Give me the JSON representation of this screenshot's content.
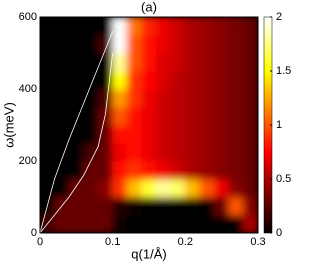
{
  "chart_data": {
    "type": "heatmap",
    "title": "(a)",
    "x_label": "q(1/Å)",
    "y_label": "ω(meV)",
    "x": [
      0.01,
      0.03,
      0.05,
      0.07,
      0.09,
      0.11,
      0.13,
      0.15,
      0.17,
      0.19,
      0.21,
      0.23,
      0.25,
      0.27,
      0.29
    ],
    "y": [
      25,
      75,
      125,
      175,
      225,
      275,
      325,
      375,
      425,
      475,
      525,
      575
    ],
    "z": [
      [
        0.2,
        0.3,
        0.3,
        0.3,
        0.3,
        0.05,
        0,
        0,
        0,
        0,
        0,
        0,
        0,
        0,
        0.5
      ],
      [
        0,
        0.3,
        0.3,
        0.3,
        0.3,
        0.1,
        0.05,
        0,
        0,
        0,
        0,
        0,
        0.3,
        1,
        0.4
      ],
      [
        0,
        0,
        0.3,
        0.3,
        0.4,
        0.9,
        1.3,
        1.6,
        1.8,
        1.7,
        1.3,
        1,
        0.7,
        0.4,
        0.3
      ],
      [
        0,
        0,
        0,
        0.3,
        0.3,
        0.8,
        0.9,
        0.8,
        0.7,
        0.6,
        0.5,
        0.45,
        0.4,
        0.35,
        0.3
      ],
      [
        0,
        0,
        0,
        0.2,
        0.3,
        0.7,
        0.8,
        0.7,
        0.6,
        0.55,
        0.5,
        0.45,
        0.4,
        0.35,
        0.3
      ],
      [
        0,
        0,
        0,
        0,
        0.3,
        0.8,
        0.8,
        0.7,
        0.6,
        0.55,
        0.5,
        0.45,
        0.4,
        0.35,
        0.3
      ],
      [
        0,
        0,
        0,
        0,
        0.3,
        1,
        0.8,
        0.7,
        0.6,
        0.55,
        0.5,
        0.45,
        0.4,
        0.35,
        0.3
      ],
      [
        0,
        0,
        0,
        0,
        0.2,
        1.2,
        0.9,
        0.7,
        0.6,
        0.55,
        0.5,
        0.45,
        0.4,
        0.35,
        0.3
      ],
      [
        0,
        0,
        0,
        0,
        0,
        1.5,
        0.9,
        0.75,
        0.65,
        0.55,
        0.5,
        0.45,
        0.4,
        0.35,
        0.3
      ],
      [
        0,
        0,
        0,
        0,
        0,
        1.8,
        1,
        0.8,
        0.65,
        0.6,
        0.5,
        0.45,
        0.4,
        0.35,
        0.3
      ],
      [
        0,
        0,
        0,
        0,
        0.2,
        2,
        1,
        0.8,
        0.7,
        0.6,
        0.5,
        0.45,
        0.4,
        0.35,
        0.3
      ],
      [
        0,
        0,
        0,
        0,
        0,
        2,
        1.1,
        0.85,
        0.7,
        0.6,
        0.5,
        0.45,
        0.4,
        0.35,
        0.3
      ]
    ],
    "series": [
      {
        "color": "#ffffff",
        "x": [
          0,
          0.02,
          0.04,
          0.06,
          0.08,
          0.1
        ],
        "values": [
          0,
          150,
          260,
          360,
          460,
          560
        ]
      },
      {
        "color": "#ffffff",
        "x": [
          0,
          0.04,
          0.06,
          0.08,
          0.09,
          0.1
        ],
        "values": [
          0,
          100,
          160,
          240,
          330,
          500
        ]
      }
    ],
    "xlim": [
      0,
      0.3
    ],
    "xticks": [
      0,
      0.1,
      0.2,
      0.3
    ],
    "ylim": [
      0,
      600
    ],
    "yticks": [
      0,
      200,
      400,
      600
    ],
    "colormap": "hot",
    "clim": [
      0,
      2
    ],
    "cticks": [
      0,
      0.5,
      1,
      1.5,
      2
    ]
  }
}
